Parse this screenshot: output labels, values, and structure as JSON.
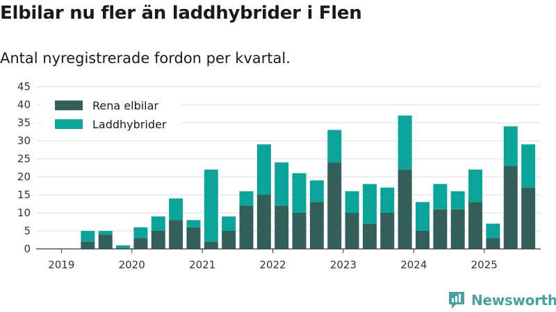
{
  "title": "Elbilar nu fler än laddhybrider i Flen",
  "subtitle": "Antal nyregistrerade fordon per kvartal.",
  "brand": {
    "name": "Newsworthy",
    "icon": "newsworthy-logo-icon"
  },
  "colors": {
    "elbilar": "#335f5a",
    "laddhybrider": "#0ca39a",
    "grid": "#dddddd",
    "axis": "#333333",
    "brand": "#46a29a"
  },
  "chart_data": {
    "type": "bar",
    "stacked": true,
    "categories": [
      "2019 Q1",
      "2019 Q2",
      "2019 Q3",
      "2019 Q4",
      "2020 Q1",
      "2020 Q2",
      "2020 Q3",
      "2020 Q4",
      "2021 Q1",
      "2021 Q2",
      "2021 Q3",
      "2021 Q4",
      "2022 Q1",
      "2022 Q2",
      "2022 Q3",
      "2022 Q4",
      "2023 Q1",
      "2023 Q2",
      "2023 Q3",
      "2023 Q4",
      "2024 Q1",
      "2024 Q2",
      "2024 Q3",
      "2024 Q4",
      "2025 Q1",
      "2025 Q2",
      "2025 Q3"
    ],
    "series": [
      {
        "name": "Rena elbilar",
        "color": "#335f5a",
        "values": [
          0,
          2,
          4,
          0,
          3,
          5,
          8,
          6,
          2,
          5,
          12,
          15,
          12,
          10,
          13,
          24,
          10,
          7,
          10,
          22,
          5,
          11,
          11,
          13,
          3,
          23,
          17
        ]
      },
      {
        "name": "Laddhybrider",
        "color": "#0ca39a",
        "values": [
          0,
          3,
          1,
          1,
          3,
          4,
          6,
          2,
          20,
          4,
          4,
          14,
          12,
          11,
          6,
          9,
          6,
          11,
          7,
          15,
          8,
          7,
          5,
          9,
          4,
          11,
          12
        ]
      }
    ],
    "xticks": [
      "2019",
      "2020",
      "2021",
      "2022",
      "2023",
      "2024",
      "2025"
    ],
    "yticks": [
      0,
      5,
      10,
      15,
      20,
      25,
      30,
      35,
      40,
      45
    ],
    "ylim": [
      0,
      45
    ],
    "grid": true,
    "legend": "top-left"
  }
}
